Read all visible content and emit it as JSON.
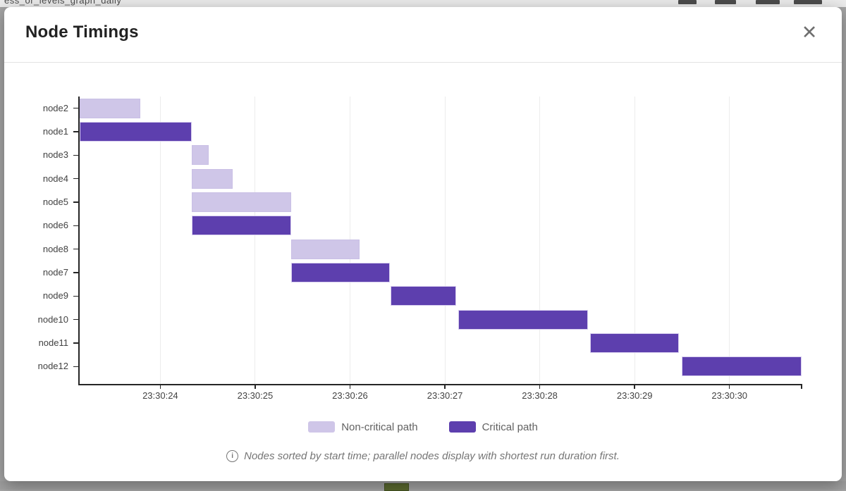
{
  "backdrop": {
    "top_text_fragment": "ess_or_levels_graph_daily",
    "bottom_accent_color": "#5a682f"
  },
  "modal": {
    "title": "Node Timings",
    "close_glyph": "✕"
  },
  "chart_data": {
    "type": "gantt",
    "title": "Node Timings",
    "x_axis": {
      "ticks": [
        "23:30:24",
        "23:30:25",
        "23:30:26",
        "23:30:27",
        "23:30:28",
        "23:30:29",
        "23:30:30"
      ],
      "tick_values_s": [
        24,
        25,
        26,
        27,
        28,
        29,
        30
      ],
      "range_s": [
        23.15,
        30.76
      ],
      "base_minute": "23:30",
      "grid": true
    },
    "rows": [
      {
        "label": "node2",
        "start_s": 23.15,
        "end_s": 23.79,
        "critical": false
      },
      {
        "label": "node1",
        "start_s": 23.15,
        "end_s": 24.33,
        "critical": true
      },
      {
        "label": "node3",
        "start_s": 24.33,
        "end_s": 24.51,
        "critical": false
      },
      {
        "label": "node4",
        "start_s": 24.33,
        "end_s": 24.76,
        "critical": false
      },
      {
        "label": "node5",
        "start_s": 24.33,
        "end_s": 25.38,
        "critical": false
      },
      {
        "label": "node6",
        "start_s": 24.33,
        "end_s": 25.38,
        "critical": true
      },
      {
        "label": "node8",
        "start_s": 25.38,
        "end_s": 26.1,
        "critical": false
      },
      {
        "label": "node7",
        "start_s": 25.38,
        "end_s": 26.42,
        "critical": true
      },
      {
        "label": "node9",
        "start_s": 26.43,
        "end_s": 27.12,
        "critical": true
      },
      {
        "label": "node10",
        "start_s": 27.14,
        "end_s": 28.51,
        "critical": true
      },
      {
        "label": "node11",
        "start_s": 28.53,
        "end_s": 29.47,
        "critical": true
      },
      {
        "label": "node12",
        "start_s": 29.5,
        "end_s": 30.76,
        "critical": true
      }
    ],
    "colors": {
      "critical": "#5d3fae",
      "non_critical": "#cfc6e8"
    },
    "legend_position": "bottom"
  },
  "legend": [
    {
      "label": "Non-critical path",
      "color": "#cfc6e8"
    },
    {
      "label": "Critical path",
      "color": "#5d3fae"
    }
  ],
  "footnote": {
    "icon_glyph": "i",
    "text": "Nodes sorted by start time; parallel nodes display with shortest run duration first."
  }
}
